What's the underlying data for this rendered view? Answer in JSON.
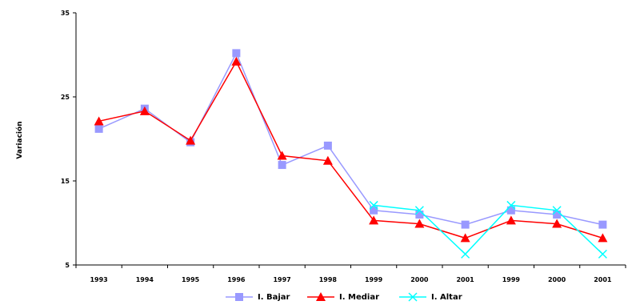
{
  "chart_data": {
    "type": "line",
    "ylabel": "Variación",
    "xlabel": "",
    "title": "",
    "categories": [
      "1993",
      "1994",
      "1995",
      "1996",
      "1997",
      "1998",
      "1999",
      "2000",
      "2001",
      "1999",
      "2000",
      "2001"
    ],
    "yticks": [
      "5",
      "15",
      "25",
      "35"
    ],
    "ylim": [
      5,
      35
    ],
    "grid": false,
    "legend_position": "bottom",
    "series": [
      {
        "name": "I. Bajar",
        "color": "#9999ff",
        "marker": "square",
        "values": [
          21.2,
          23.6,
          19.6,
          30.2,
          16.9,
          19.2,
          11.5,
          11.0,
          9.8,
          11.5,
          11.0,
          9.8
        ]
      },
      {
        "name": "I. Mediar",
        "color": "#ff0000",
        "marker": "triangle",
        "values": [
          22.1,
          23.3,
          19.8,
          29.2,
          18.0,
          17.4,
          10.3,
          9.9,
          8.2,
          10.3,
          9.9,
          8.2
        ]
      },
      {
        "name": "I. Altar",
        "color": "#00ffff",
        "marker": "x",
        "values": [
          null,
          null,
          null,
          null,
          null,
          null,
          12.1,
          11.5,
          6.3,
          12.1,
          11.5,
          6.3
        ]
      }
    ]
  }
}
